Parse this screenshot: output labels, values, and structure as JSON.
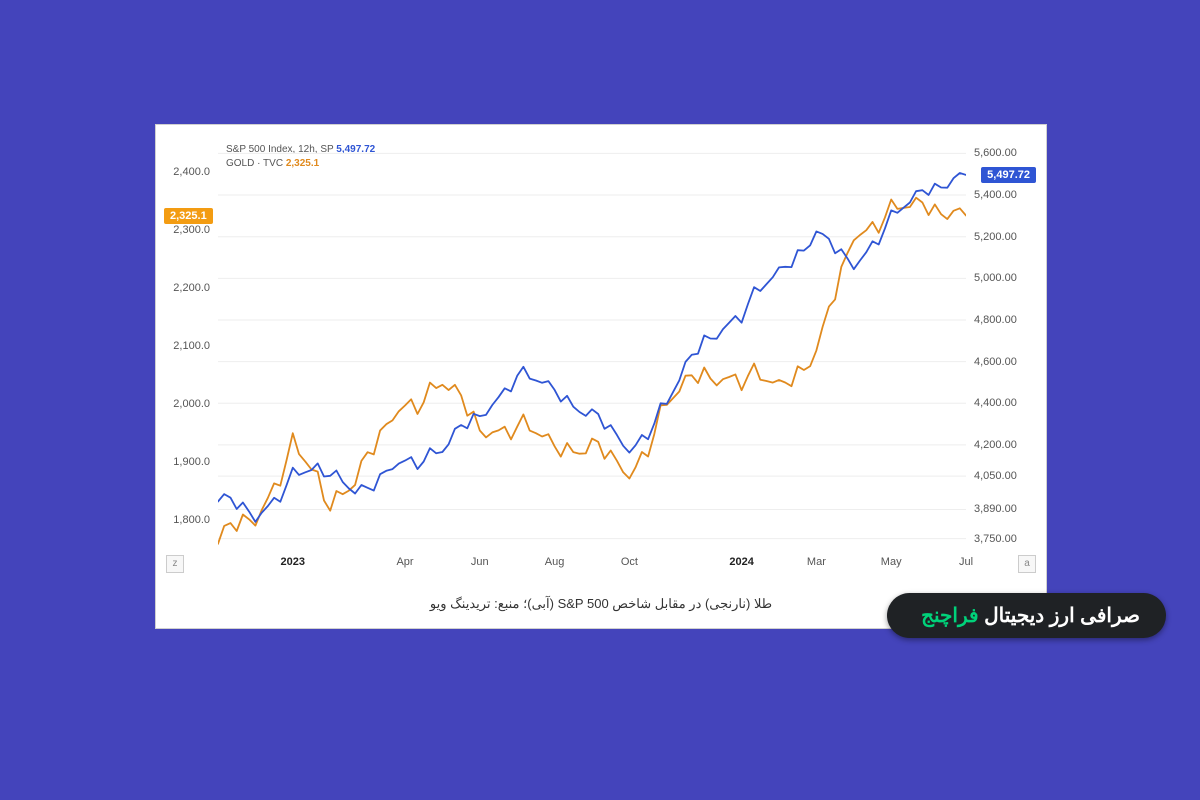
{
  "background_color": "#4444bb",
  "card": {
    "bg": "#ffffff",
    "border": "#d0d0d0"
  },
  "legend": {
    "line1_label": "S&P 500 Index, 12h, SP",
    "line1_value": "5,497.72",
    "line2_label": "GOLD · TVC",
    "line2_value": "2,325.1"
  },
  "caption": "طلا (نارنجی) در مقابل شاخص S&P 500 (آبی)؛ منبع: تریدینگ ویو",
  "brand": {
    "white": "صرافی ارز دیجیتال ",
    "accent": "فراچنج",
    "accent_color": "#00d27a",
    "bg": "#1f2225"
  },
  "corner_left": "z",
  "corner_right": "a",
  "chart": {
    "type": "line-dual-axis",
    "line_width": 1.8,
    "grid_color": "#eeeeee",
    "axis_text_color": "#555555",
    "font_size": 11,
    "x_categories": [
      "2022-11",
      "2022-12",
      "2023-01",
      "2023-02",
      "2023-03",
      "2023-04",
      "2023-05",
      "2023-06",
      "2023-07",
      "2023-08",
      "2023-09",
      "2023-10",
      "2023-11",
      "2023-12",
      "2024-01",
      "2024-02",
      "2024-03",
      "2024-04",
      "2024-05",
      "2024-06",
      "2024-07"
    ],
    "x_ticks": [
      {
        "i": 2,
        "label": "2023",
        "bold": true
      },
      {
        "i": 5,
        "label": "Apr"
      },
      {
        "i": 7,
        "label": "Jun"
      },
      {
        "i": 9,
        "label": "Aug"
      },
      {
        "i": 11,
        "label": "Oct"
      },
      {
        "i": 14,
        "label": "2024",
        "bold": true
      },
      {
        "i": 16,
        "label": "Mar"
      },
      {
        "i": 18,
        "label": "May"
      },
      {
        "i": 20,
        "label": "Jul"
      }
    ],
    "left_axis": {
      "name": "GOLD",
      "color": "#e08a1e",
      "min": 1750,
      "max": 2450,
      "ticks": [
        1800,
        1900,
        2000,
        2100,
        2200,
        2300,
        2400
      ],
      "tick_labels": [
        "1,800.0",
        "1,900.0",
        "2,000.0",
        "2,100.0",
        "2,200.0",
        "2,300.0",
        "2,400.0"
      ],
      "current_badge": "2,325.1",
      "series": [
        1770,
        1800,
        1930,
        1830,
        1910,
        2000,
        2040,
        1960,
        1960,
        1930,
        1930,
        1880,
        2000,
        2060,
        2040,
        2040,
        2080,
        2300,
        2330,
        2350,
        2325
      ]
    },
    "right_axis": {
      "name": "S&P 500",
      "color": "#2f55d4",
      "min": 3700,
      "max": 5650,
      "ticks": [
        3750,
        3890,
        4050,
        4200,
        4400,
        4600,
        4800,
        5000,
        5200,
        5400,
        5600
      ],
      "tick_labels": [
        "3,750.00",
        "3,890.00",
        "4,050.00",
        "4,200.00",
        "4,400.00",
        "4,600.00",
        "4,800.00",
        "5,000.00",
        "5,200.00",
        "5,400.00",
        "5,600.00"
      ],
      "current_badge": "5,497.72",
      "series": [
        3950,
        3850,
        4050,
        4080,
        3980,
        4130,
        4180,
        4350,
        4530,
        4470,
        4350,
        4180,
        4400,
        4720,
        4820,
        5050,
        5200,
        5080,
        5280,
        5450,
        5497
      ]
    }
  }
}
